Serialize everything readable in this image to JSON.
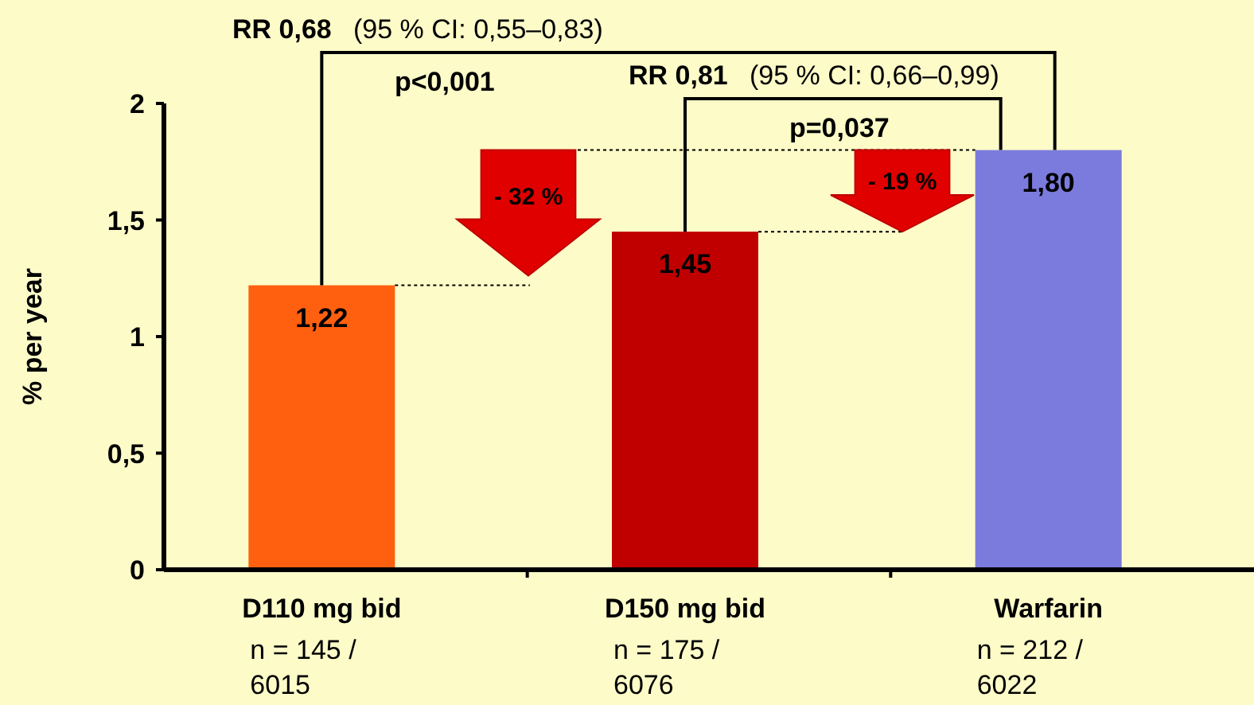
{
  "chart_data": {
    "type": "bar",
    "ylabel": "%  per  year",
    "categories": [
      "D110 mg bid",
      "D150 mg bid",
      "Warfarin"
    ],
    "values": [
      1.22,
      1.45,
      1.8
    ],
    "colors": [
      "#ff6010",
      "#c00000",
      "#7b7bdd"
    ],
    "data_labels": true,
    "value_labels": [
      "1,22",
      "1,45",
      "1,80"
    ],
    "ylim": [
      0,
      2
    ],
    "yticks": [
      {
        "value": 0,
        "label": "0"
      },
      {
        "value": 0.5,
        "label": "0,5"
      },
      {
        "value": 1,
        "label": "1"
      },
      {
        "value": 1.5,
        "label": "1,5"
      },
      {
        "value": 2,
        "label": "2"
      }
    ],
    "ref_lines": [
      {
        "axis": "y",
        "value": 1.22,
        "color": "#000000",
        "line_style": "dotted"
      },
      {
        "axis": "y",
        "value": 1.45,
        "color": "#000000",
        "line_style": "dotted"
      },
      {
        "axis": "y",
        "value": 1.8,
        "color": "#000000",
        "line_style": "dotted"
      }
    ],
    "annotations": [
      "n = 145 /\n6015",
      "n = 175 /\n6076",
      "n = 212 /\n6022",
      "RR 0,68",
      "(95 % CI: 0,55–0,83)",
      "p<0,001",
      "RR 0,81",
      "(95 % CI: 0,66–0,99)",
      "p=0,037",
      "- 32 %",
      "- 19 %"
    ]
  }
}
